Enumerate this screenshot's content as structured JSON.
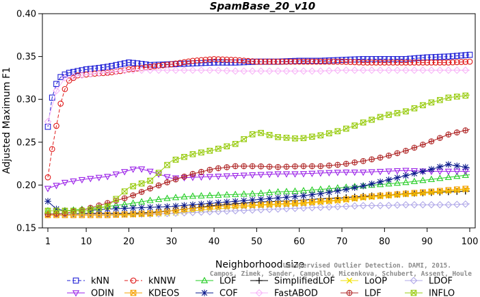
{
  "chart_data": {
    "type": "line",
    "title": "SpamBase_20_v10",
    "xlabel": "Neighborhood size",
    "ylabel": "Adjusted Maximum F1",
    "xlim": [
      1,
      100
    ],
    "ylim": [
      0.15,
      0.4
    ],
    "xticks": [
      "1",
      "10",
      "20",
      "30",
      "40",
      "50",
      "60",
      "70",
      "80",
      "90",
      "100"
    ],
    "yticks": [
      "0.15",
      "0.20",
      "0.25",
      "0.30",
      "0.35",
      "0.40"
    ],
    "grid": false,
    "legend_position": "bottom",
    "watermark": [
      "Unsupervised Outlier Detection. DAMI, 2015.",
      "Campos, Zimek, Sander, Campello, Micenkova, Schubert, Assent, Houle"
    ],
    "series": [
      {
        "name": "kNN",
        "color": "#1f1fd6",
        "marker": "square",
        "dash": "5,3",
        "x": [
          1,
          2,
          3,
          4,
          5,
          6,
          8,
          10,
          12,
          15,
          18,
          20,
          22,
          25,
          30,
          35,
          40,
          45,
          50,
          55,
          60,
          65,
          70,
          75,
          80,
          85,
          90,
          95,
          100
        ],
        "y": [
          0.268,
          0.302,
          0.318,
          0.326,
          0.329,
          0.331,
          0.333,
          0.335,
          0.336,
          0.338,
          0.341,
          0.343,
          0.342,
          0.34,
          0.341,
          0.342,
          0.343,
          0.343,
          0.344,
          0.344,
          0.345,
          0.345,
          0.346,
          0.347,
          0.347,
          0.347,
          0.349,
          0.35,
          0.352
        ]
      },
      {
        "name": "kNNW",
        "color": "#e01b1b",
        "marker": "circle",
        "dash": "5,3",
        "x": [
          1,
          2,
          3,
          4,
          5,
          6,
          8,
          10,
          12,
          15,
          18,
          20,
          22,
          25,
          30,
          35,
          40,
          45,
          50,
          55,
          60,
          65,
          70,
          75,
          80,
          85,
          90,
          95,
          100
        ],
        "y": [
          0.209,
          0.242,
          0.269,
          0.295,
          0.312,
          0.322,
          0.328,
          0.329,
          0.33,
          0.331,
          0.333,
          0.335,
          0.336,
          0.338,
          0.341,
          0.345,
          0.347,
          0.346,
          0.344,
          0.344,
          0.344,
          0.344,
          0.344,
          0.343,
          0.343,
          0.343,
          0.343,
          0.343,
          0.344
        ]
      },
      {
        "name": "LOF",
        "color": "#22cc22",
        "marker": "triangle-up",
        "dash": "none",
        "x": [
          1,
          5,
          10,
          15,
          20,
          25,
          30,
          35,
          40,
          45,
          50,
          55,
          60,
          65,
          70,
          75,
          80,
          85,
          90,
          95,
          100
        ],
        "y": [
          0.17,
          0.17,
          0.172,
          0.175,
          0.178,
          0.182,
          0.185,
          0.187,
          0.188,
          0.189,
          0.19,
          0.192,
          0.193,
          0.195,
          0.197,
          0.199,
          0.201,
          0.203,
          0.206,
          0.209,
          0.212
        ]
      },
      {
        "name": "SimplifiedLOF",
        "color": "#000000",
        "marker": "plus",
        "dash": "none",
        "x": [
          1,
          5,
          10,
          15,
          20,
          25,
          30,
          35,
          40,
          45,
          50,
          55,
          60,
          65,
          70,
          75,
          80,
          85,
          90,
          95,
          100
        ],
        "y": [
          0.166,
          0.166,
          0.167,
          0.167,
          0.167,
          0.168,
          0.17,
          0.173,
          0.176,
          0.178,
          0.18,
          0.181,
          0.182,
          0.184,
          0.185,
          0.187,
          0.188,
          0.19,
          0.191,
          0.192,
          0.193
        ]
      },
      {
        "name": "LoOP",
        "color": "#f0e000",
        "marker": "x",
        "dash": "none",
        "x": [
          1,
          5,
          10,
          15,
          20,
          25,
          30,
          35,
          40,
          45,
          50,
          55,
          60,
          65,
          70,
          75,
          80,
          85,
          90,
          95,
          100
        ],
        "y": [
          0.165,
          0.165,
          0.165,
          0.165,
          0.165,
          0.166,
          0.167,
          0.17,
          0.172,
          0.174,
          0.176,
          0.177,
          0.178,
          0.18,
          0.182,
          0.185,
          0.187,
          0.189,
          0.191,
          0.193,
          0.195
        ]
      },
      {
        "name": "LDOF",
        "color": "#b0a8e8",
        "marker": "diamond",
        "dash": "none",
        "x": [
          1,
          5,
          10,
          15,
          20,
          25,
          30,
          35,
          40,
          45,
          50,
          55,
          60,
          65,
          70,
          75,
          80,
          85,
          90,
          95,
          100
        ],
        "y": [
          0.166,
          0.166,
          0.166,
          0.166,
          0.166,
          0.166,
          0.167,
          0.168,
          0.169,
          0.17,
          0.171,
          0.172,
          0.173,
          0.174,
          0.175,
          0.176,
          0.176,
          0.177,
          0.177,
          0.177,
          0.178
        ]
      },
      {
        "name": "ODIN",
        "color": "#9b22e8",
        "marker": "triangle-down",
        "dash": "none",
        "x": [
          1,
          5,
          10,
          15,
          20,
          22,
          25,
          30,
          35,
          40,
          45,
          50,
          55,
          60,
          65,
          70,
          75,
          80,
          85,
          90,
          95,
          100
        ],
        "y": [
          0.196,
          0.203,
          0.207,
          0.21,
          0.217,
          0.22,
          0.216,
          0.208,
          0.209,
          0.21,
          0.211,
          0.212,
          0.213,
          0.213,
          0.214,
          0.215,
          0.215,
          0.216,
          0.217,
          0.216,
          0.216,
          0.216
        ]
      },
      {
        "name": "KDEOS",
        "color": "#f5a000",
        "marker": "square-x",
        "dash": "none",
        "x": [
          1,
          5,
          10,
          15,
          20,
          25,
          30,
          35,
          40,
          45,
          50,
          55,
          60,
          65,
          70,
          75,
          80,
          85,
          90,
          95,
          100
        ],
        "y": [
          0.165,
          0.165,
          0.165,
          0.165,
          0.166,
          0.167,
          0.17,
          0.173,
          0.175,
          0.176,
          0.177,
          0.178,
          0.179,
          0.181,
          0.183,
          0.186,
          0.188,
          0.19,
          0.192,
          0.194,
          0.196
        ]
      },
      {
        "name": "COF",
        "color": "#0b1a8c",
        "marker": "star",
        "dash": "none",
        "x": [
          1,
          3,
          5,
          10,
          15,
          20,
          25,
          30,
          35,
          40,
          45,
          50,
          55,
          60,
          65,
          70,
          75,
          80,
          85,
          90,
          95,
          100
        ],
        "y": [
          0.181,
          0.172,
          0.17,
          0.17,
          0.172,
          0.173,
          0.174,
          0.175,
          0.177,
          0.179,
          0.181,
          0.183,
          0.185,
          0.187,
          0.19,
          0.194,
          0.199,
          0.205,
          0.211,
          0.217,
          0.224,
          0.22
        ]
      },
      {
        "name": "FastABOD",
        "color": "#f7b3f7",
        "marker": "diamond",
        "dash": "none",
        "x": [
          1,
          3,
          5,
          10,
          15,
          20,
          25,
          30,
          35,
          40,
          45,
          50,
          55,
          60,
          65,
          70,
          75,
          80,
          85,
          90,
          95,
          100
        ],
        "y": [
          0.274,
          0.31,
          0.325,
          0.329,
          0.332,
          0.334,
          0.334,
          0.334,
          0.334,
          0.334,
          0.333,
          0.333,
          0.333,
          0.333,
          0.333,
          0.334,
          0.334,
          0.334,
          0.334,
          0.334,
          0.334,
          0.334
        ]
      },
      {
        "name": "LDF",
        "color": "#b02828",
        "marker": "circle-plus",
        "dash": "none",
        "x": [
          1,
          5,
          10,
          15,
          20,
          25,
          30,
          35,
          40,
          45,
          50,
          55,
          60,
          65,
          70,
          75,
          80,
          85,
          90,
          95,
          100
        ],
        "y": [
          0.166,
          0.167,
          0.172,
          0.179,
          0.186,
          0.196,
          0.205,
          0.213,
          0.219,
          0.222,
          0.222,
          0.221,
          0.222,
          0.222,
          0.224,
          0.228,
          0.233,
          0.24,
          0.249,
          0.259,
          0.265
        ]
      },
      {
        "name": "INFLO",
        "color": "#99cc11",
        "marker": "hourglass",
        "dash": "none",
        "x": [
          1,
          5,
          10,
          15,
          20,
          25,
          30,
          35,
          40,
          45,
          50,
          55,
          60,
          65,
          70,
          75,
          80,
          85,
          90,
          95,
          100
        ],
        "y": [
          0.17,
          0.17,
          0.17,
          0.175,
          0.197,
          0.205,
          0.228,
          0.236,
          0.241,
          0.248,
          0.262,
          0.256,
          0.254,
          0.258,
          0.264,
          0.273,
          0.281,
          0.286,
          0.295,
          0.302,
          0.305
        ]
      }
    ]
  }
}
